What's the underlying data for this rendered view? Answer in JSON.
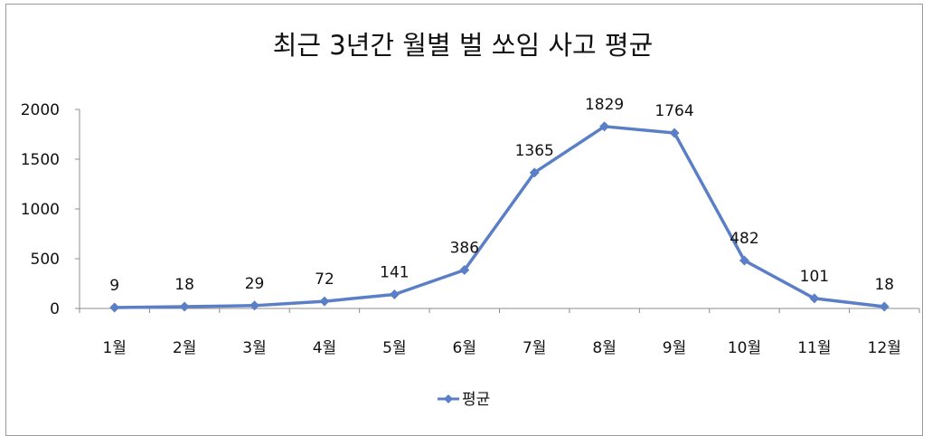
{
  "chart_data": {
    "type": "line",
    "title": "최근 3년간 월별 벌 쏘임 사고 평균",
    "categories": [
      "1월",
      "2월",
      "3월",
      "4월",
      "5월",
      "6월",
      "7월",
      "8월",
      "9월",
      "10월",
      "11월",
      "12월"
    ],
    "series": [
      {
        "name": "평균",
        "values": [
          9,
          18,
          29,
          72,
          141,
          386,
          1365,
          1829,
          1764,
          482,
          101,
          18
        ],
        "color": "#5b7fc6",
        "marker": "diamond"
      }
    ],
    "ylim": [
      0,
      2000
    ],
    "yticks": [
      0,
      500,
      1000,
      1500,
      2000
    ],
    "data_labels": true,
    "grid": false,
    "legend_position": "bottom"
  }
}
